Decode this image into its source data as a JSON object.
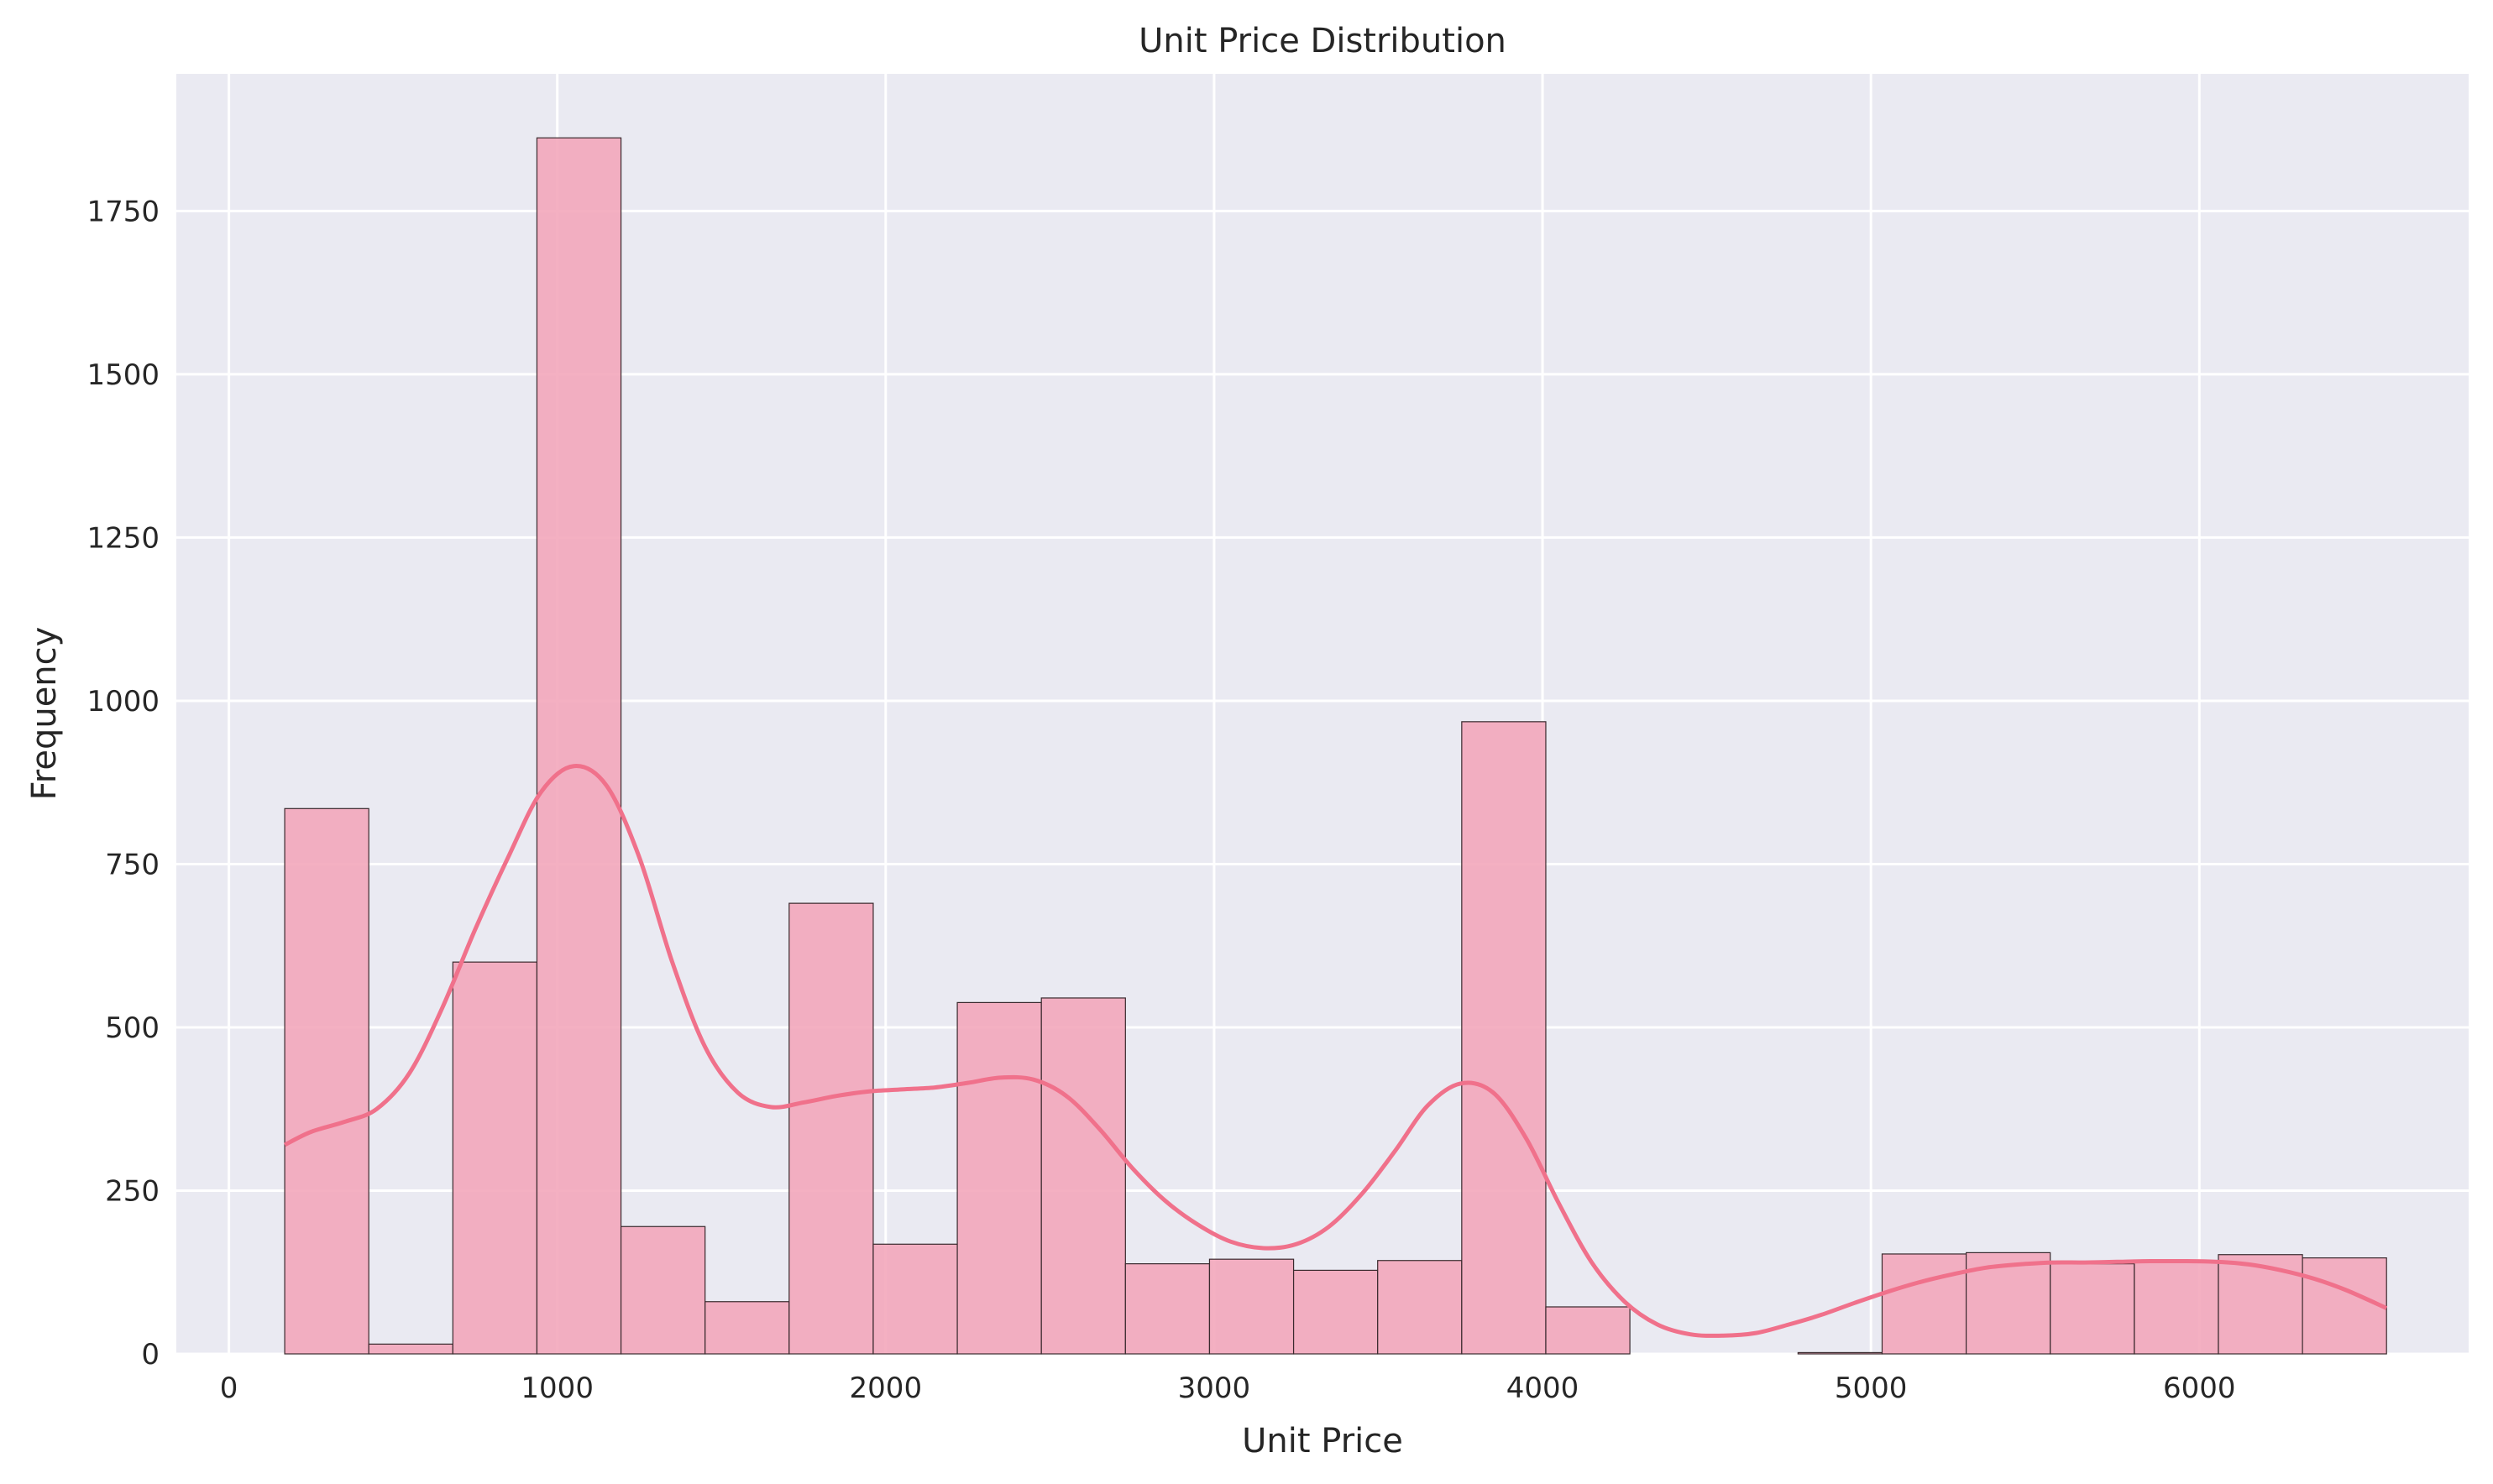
{
  "chart_data": {
    "type": "bar",
    "title": "Unit Price Distribution",
    "xlabel": "Unit Price",
    "ylabel": "Frequency",
    "xlim": [
      -160,
      6820
    ],
    "ylim": [
      0,
      1960
    ],
    "xticks": [
      0,
      1000,
      2000,
      3000,
      4000,
      5000,
      6000
    ],
    "yticks": [
      0,
      250,
      500,
      750,
      1000,
      1250,
      1500,
      1750
    ],
    "grid": true,
    "bin_edges": [
      170,
      426,
      682,
      938,
      1194,
      1450,
      1706,
      1962,
      2218,
      2474,
      2730,
      2986,
      3242,
      3498,
      3754,
      4010,
      4266,
      4522,
      4778,
      5034,
      5290,
      5546,
      5802,
      6058,
      6314,
      6570
    ],
    "values": [
      835,
      15,
      600,
      1862,
      195,
      80,
      690,
      168,
      538,
      545,
      138,
      145,
      128,
      143,
      968,
      72,
      0,
      0,
      2,
      153,
      155,
      138,
      140,
      152,
      147
    ],
    "kde": {
      "x": [
        170,
        250,
        350,
        450,
        550,
        650,
        750,
        850,
        950,
        1050,
        1150,
        1250,
        1350,
        1450,
        1550,
        1650,
        1750,
        1850,
        1950,
        2050,
        2150,
        2250,
        2350,
        2450,
        2550,
        2650,
        2750,
        2850,
        2950,
        3050,
        3150,
        3250,
        3350,
        3450,
        3550,
        3650,
        3750,
        3850,
        3950,
        4050,
        4150,
        4250,
        4350,
        4450,
        4550,
        4650,
        4750,
        4850,
        4950,
        5050,
        5150,
        5250,
        5350,
        5450,
        5550,
        5650,
        5750,
        5850,
        5950,
        6050,
        6150,
        6250,
        6350,
        6450,
        6570
      ],
      "y": [
        320,
        340,
        355,
        375,
        430,
        530,
        650,
        760,
        860,
        900,
        870,
        760,
        600,
        470,
        400,
        378,
        385,
        395,
        402,
        405,
        408,
        415,
        423,
        420,
        395,
        345,
        285,
        235,
        198,
        172,
        162,
        168,
        195,
        245,
        310,
        380,
        414,
        400,
        330,
        230,
        140,
        80,
        45,
        30,
        28,
        32,
        45,
        60,
        78,
        95,
        110,
        122,
        132,
        137,
        140,
        140,
        141,
        142,
        142,
        141,
        137,
        128,
        115,
        97,
        70
      ]
    },
    "bar_color": "#f3a7bb",
    "line_color": "#f0718b",
    "background_color": "#eaeaf2"
  }
}
